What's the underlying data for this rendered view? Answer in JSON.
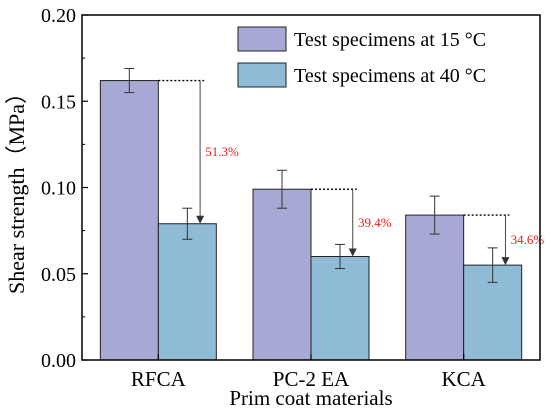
{
  "chart_data": {
    "type": "bar",
    "xlabel": "Prim coat materials",
    "ylabel": "Shear strength（MPa）",
    "ylim": [
      0,
      0.2
    ],
    "yticks": [
      "0.00",
      "0.05",
      "0.10",
      "0.15",
      "0.20"
    ],
    "ytick_values": [
      0,
      0.05,
      0.1,
      0.15,
      0.2
    ],
    "categories": [
      "RFCA",
      "PC-2 EA",
      "KCA"
    ],
    "series": [
      {
        "name": "Test specimens at 15 °C",
        "values": [
          0.162,
          0.099,
          0.084
        ],
        "errors": [
          0.007,
          0.011,
          0.011
        ],
        "color": "#a7a8d3"
      },
      {
        "name": "Test specimens at 40 °C",
        "values": [
          0.079,
          0.06,
          0.055
        ],
        "errors": [
          0.009,
          0.007,
          0.01
        ],
        "color": "#8fbbd6"
      }
    ],
    "annotations": [
      "51.3%",
      "39.4%",
      "34.6%"
    ],
    "annotation_color": "#e8201e",
    "legend": "top-right",
    "grid": false
  }
}
